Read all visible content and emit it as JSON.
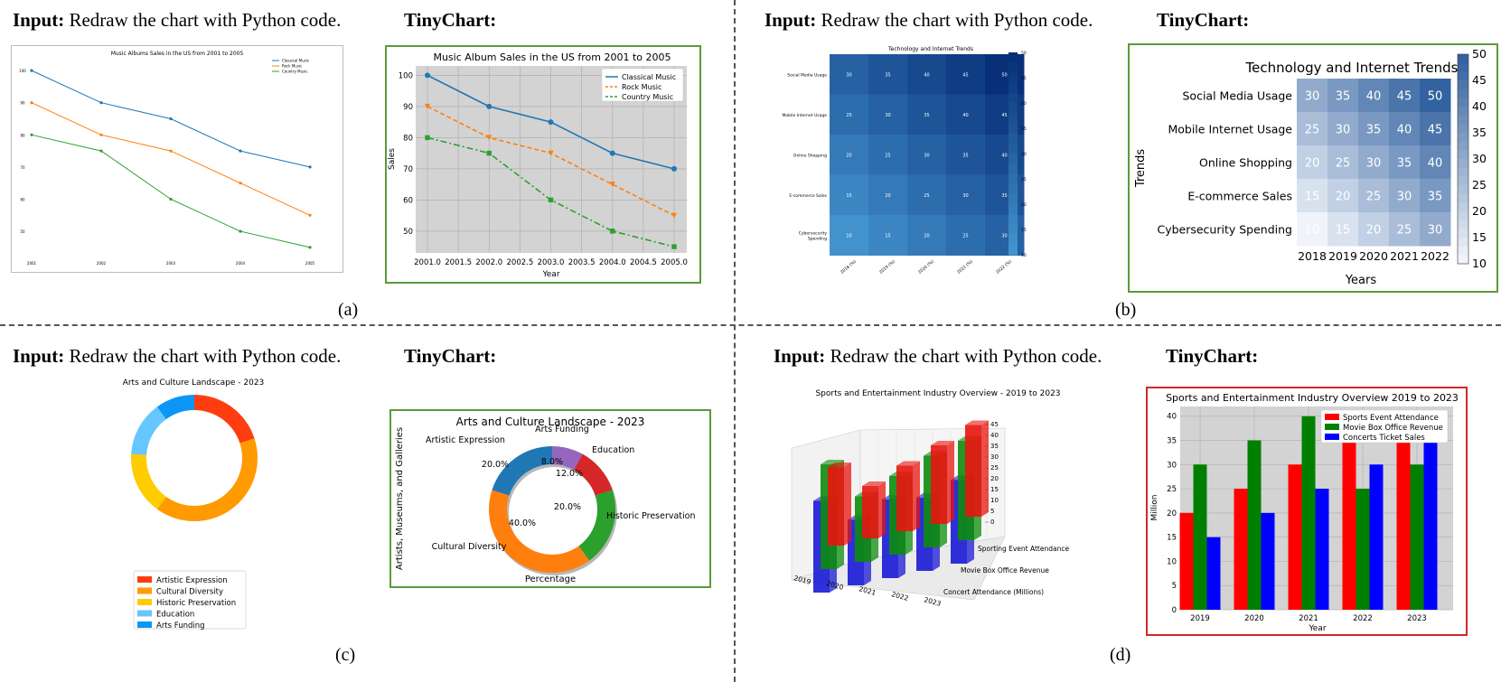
{
  "headers": {
    "input_bold": "Input:",
    "input_text": "Redraw the chart with Python code.",
    "tiny": "TinyChart:"
  },
  "captions": [
    "(a)",
    "(b)",
    "(c)",
    "(d)"
  ],
  "colors": {
    "green_frame": "#5b9a3b",
    "red_frame": "#d4262b"
  },
  "chart_data": [
    {
      "id": "a_input",
      "type": "line",
      "title": "Music Albums Sales in the US from 2001 to 2005",
      "x": [
        "2001",
        "2002",
        "2003",
        "2004",
        "2005"
      ],
      "series": [
        {
          "name": "Classical Music",
          "values": [
            100,
            90,
            85,
            75,
            70
          ],
          "color": "#1f77b4"
        },
        {
          "name": "Rock Music",
          "values": [
            90,
            80,
            75,
            65,
            55
          ],
          "color": "#ff7f0e"
        },
        {
          "name": "Country Music",
          "values": [
            80,
            75,
            60,
            50,
            45
          ],
          "color": "#2ca02c"
        }
      ],
      "yticks": [
        "100",
        "90",
        "80",
        "70",
        "60",
        "50"
      ],
      "ylim": [
        43,
        102
      ],
      "legend": "top-right"
    },
    {
      "id": "a_output",
      "type": "line",
      "title": "Music Album Sales in the US from 2001 to 2005",
      "xlabel": "Year",
      "ylabel": "Sales",
      "xticks": [
        "2001.0",
        "2001.5",
        "2002.0",
        "2002.5",
        "2003.0",
        "2003.5",
        "2004.0",
        "2004.5",
        "2005.0"
      ],
      "yticks": [
        "100",
        "90",
        "80",
        "70",
        "60",
        "50"
      ],
      "x": [
        2001,
        2002,
        2003,
        2004,
        2005
      ],
      "series": [
        {
          "name": "Classical Music",
          "values": [
            100,
            90,
            85,
            75,
            70
          ],
          "color": "#1f77b4"
        },
        {
          "name": "Rock Music",
          "values": [
            90,
            80,
            75,
            65,
            55
          ],
          "color": "#ff7f0e"
        },
        {
          "name": "Country Music",
          "values": [
            80,
            75,
            60,
            50,
            45
          ],
          "color": "#2ca02c"
        }
      ],
      "ylim": [
        43,
        103
      ],
      "grid": true,
      "legend": "top-right"
    },
    {
      "id": "b_input",
      "type": "heatmap",
      "title": "Technology and Internet Trends",
      "rows": [
        "Social Media Usage",
        "Mobile Internet Usage",
        "Online Shopping",
        "E-commerce Sales",
        "Cybersecurity Spending"
      ],
      "cols": [
        "2018 (%)",
        "2019 (%)",
        "2020 (%)",
        "2021 (%)",
        "2022 (%)"
      ],
      "values": [
        [
          30,
          35,
          40,
          45,
          50
        ],
        [
          25,
          30,
          35,
          40,
          45
        ],
        [
          20,
          25,
          30,
          35,
          40
        ],
        [
          15,
          20,
          25,
          30,
          35
        ],
        [
          10,
          15,
          20,
          25,
          30
        ]
      ],
      "colorbar_ticks": [
        "50",
        "45",
        "40",
        "35",
        "30",
        "25",
        "20",
        "15",
        "10"
      ],
      "range": [
        10,
        50
      ]
    },
    {
      "id": "b_output",
      "type": "heatmap",
      "title": "Technology and Internet Trends",
      "xlabel": "Years",
      "ylabel": "Trends",
      "rows": [
        "Social Media Usage",
        "Mobile Internet Usage",
        "Online Shopping",
        "E-commerce Sales",
        "Cybersecurity Spending"
      ],
      "cols": [
        "2018",
        "2019",
        "2020",
        "2021",
        "2022"
      ],
      "values": [
        [
          30,
          35,
          40,
          45,
          50
        ],
        [
          25,
          30,
          35,
          40,
          45
        ],
        [
          20,
          25,
          30,
          35,
          40
        ],
        [
          15,
          20,
          25,
          30,
          35
        ],
        [
          10,
          15,
          20,
          25,
          30
        ]
      ],
      "colorbar_ticks": [
        "50",
        "45",
        "40",
        "35",
        "30",
        "25",
        "20",
        "15",
        "10"
      ],
      "range": [
        10,
        50
      ]
    },
    {
      "id": "c_input",
      "type": "pie",
      "title": "Arts and Culture Landscape - 2023",
      "labels": [
        "Artistic Expression",
        "Cultural Diversity",
        "Historic Preservation",
        "Education",
        "Arts Funding"
      ],
      "values": [
        20,
        40,
        16,
        14,
        10
      ],
      "colors": [
        "#ff3d10",
        "#ff9a00",
        "#ffcc00",
        "#66c6ff",
        "#0d96f5"
      ],
      "legend": "bottom"
    },
    {
      "id": "c_output",
      "type": "pie",
      "title": "Arts and Culture Landscape - 2023",
      "xlabel": "Percentage",
      "ylabel": "Artists, Museums, and Galleries",
      "labels": [
        "Arts Funding",
        "Education",
        "Historic Preservation",
        "Cultural Diversity",
        "Artistic Expression"
      ],
      "values": [
        8,
        12,
        20,
        40,
        20
      ],
      "pct_labels": [
        "8.0%",
        "12.0%",
        "20.0%",
        "40.0%",
        "20.0%"
      ],
      "colors": [
        "#9467bd",
        "#d62728",
        "#2ca02c",
        "#ff7f0e",
        "#1f77b4"
      ]
    },
    {
      "id": "d_input",
      "type": "bar",
      "title": "Sports and Entertainment Industry Overview - 2019 to 2023",
      "categories": [
        "2019",
        "2020",
        "2021",
        "2022",
        "2023"
      ],
      "depth_labels": [
        "Sporting Event Attendance",
        "Movie Box Office Revenue",
        "Concert Attendance (Millions)"
      ],
      "zticks": [
        "45",
        "40",
        "35",
        "30",
        "25",
        "20",
        "15",
        "10",
        "5",
        "0"
      ],
      "series": [
        {
          "name": "Sporting Event Attendance",
          "values": [
            30,
            20,
            25,
            30,
            35
          ],
          "color": "#e8140e"
        },
        {
          "name": "Movie Box Office Revenue",
          "values": [
            40,
            25,
            30,
            35,
            38
          ],
          "color": "#0c8c0c"
        },
        {
          "name": "Concert Attendance (Millions)",
          "values": [
            35,
            25,
            30,
            28,
            32
          ],
          "color": "#1a1ad6"
        }
      ]
    },
    {
      "id": "d_output",
      "type": "bar",
      "title": "Sports and Entertainment Industry Overview 2019 to 2023",
      "xlabel": "Year",
      "ylabel": "Million",
      "categories": [
        "2019",
        "2020",
        "2021",
        "2022",
        "2023"
      ],
      "yticks": [
        "0",
        "5",
        "10",
        "15",
        "20",
        "25",
        "30",
        "35",
        "40"
      ],
      "ylim": [
        0,
        42
      ],
      "series": [
        {
          "name": "Sports Event Attendance",
          "values": [
            20,
            25,
            30,
            35,
            40
          ],
          "color": "#ff0000"
        },
        {
          "name": "Movie Box Office Revenue",
          "values": [
            30,
            35,
            40,
            25,
            30
          ],
          "color": "#008000"
        },
        {
          "name": "Concerts Ticket Sales",
          "values": [
            15,
            20,
            25,
            30,
            35
          ],
          "color": "#0000ff"
        }
      ],
      "grid": true,
      "legend": "top-center"
    }
  ]
}
